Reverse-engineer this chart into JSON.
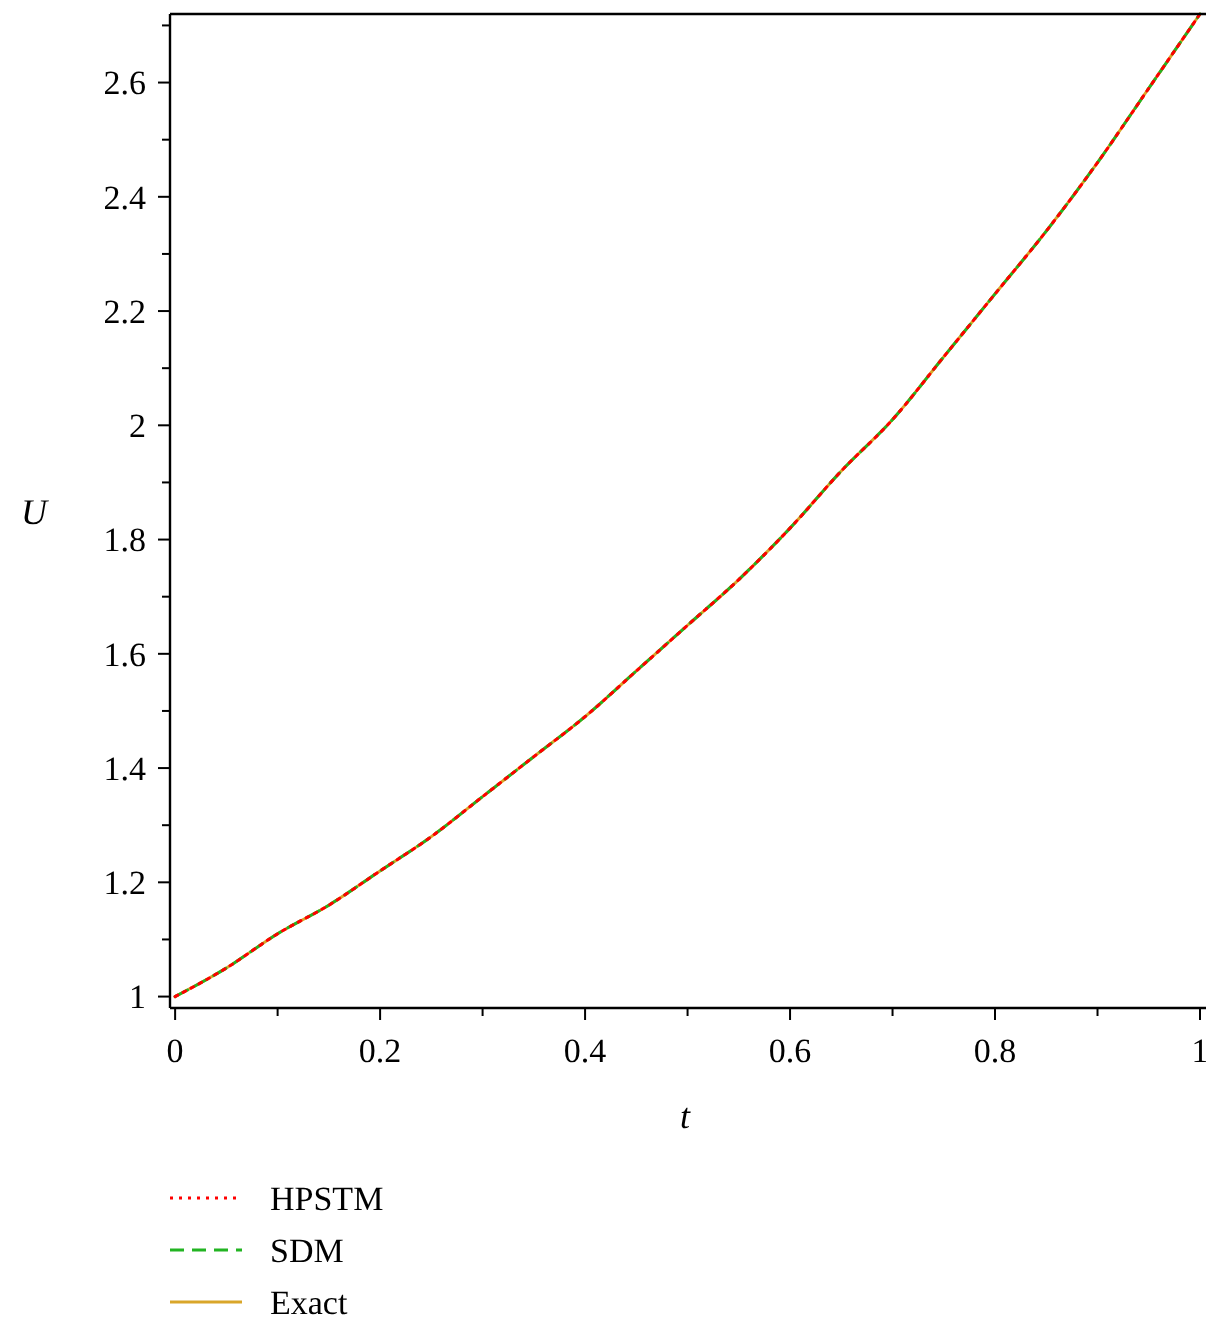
{
  "chart_data": {
    "type": "line",
    "xlabel": "t",
    "ylabel": "U",
    "x": [
      0,
      0.05,
      0.1,
      0.15,
      0.2,
      0.25,
      0.3,
      0.35,
      0.4,
      0.45,
      0.5,
      0.55,
      0.6,
      0.65,
      0.7,
      0.75,
      0.8,
      0.85,
      0.9,
      0.95,
      1
    ],
    "series": [
      {
        "name": "HPSTM",
        "color": "#ff0000",
        "line_style": "dotted",
        "values": [
          1.0,
          1.05,
          1.11,
          1.16,
          1.22,
          1.28,
          1.35,
          1.42,
          1.49,
          1.57,
          1.65,
          1.73,
          1.82,
          1.92,
          2.01,
          2.12,
          2.23,
          2.34,
          2.46,
          2.59,
          2.72
        ]
      },
      {
        "name": "SDM",
        "color": "#22b422",
        "line_style": "dashed",
        "values": [
          1.0,
          1.05,
          1.11,
          1.16,
          1.22,
          1.28,
          1.35,
          1.42,
          1.49,
          1.57,
          1.65,
          1.73,
          1.82,
          1.92,
          2.01,
          2.12,
          2.23,
          2.34,
          2.46,
          2.59,
          2.72
        ]
      },
      {
        "name": "Exact",
        "color": "#d9a62a",
        "line_style": "solid",
        "values": [
          1.0,
          1.05,
          1.11,
          1.16,
          1.22,
          1.28,
          1.35,
          1.42,
          1.49,
          1.57,
          1.65,
          1.73,
          1.82,
          1.92,
          2.01,
          2.12,
          2.23,
          2.34,
          2.46,
          2.59,
          2.72
        ]
      }
    ],
    "xlim": [
      -0.005,
      1
    ],
    "xticks": [
      0,
      {
        "value": 0.1,
        "label": null
      },
      0.2,
      {
        "value": 0.3,
        "label": null
      },
      0.4,
      {
        "value": 0.5,
        "label": null
      },
      0.6,
      {
        "value": 0.7,
        "label": null
      },
      0.8,
      {
        "value": 0.9,
        "label": null
      },
      1
    ],
    "ylim": [
      0.98,
      2.72
    ],
    "yticks": [
      1,
      {
        "value": 1.1,
        "label": null
      },
      1.2,
      {
        "value": 1.3,
        "label": null
      },
      1.4,
      {
        "value": 1.5,
        "label": null
      },
      1.6,
      {
        "value": 1.7,
        "label": null
      },
      1.8,
      {
        "value": 1.9,
        "label": null
      },
      2,
      {
        "value": 2.1,
        "label": null
      },
      2.2,
      {
        "value": 2.3,
        "label": null
      },
      2.4,
      {
        "value": 2.5,
        "label": null
      },
      2.6,
      {
        "value": 2.7,
        "label": null
      }
    ],
    "grid": false,
    "legend": "bottom left",
    "marker": "none"
  }
}
